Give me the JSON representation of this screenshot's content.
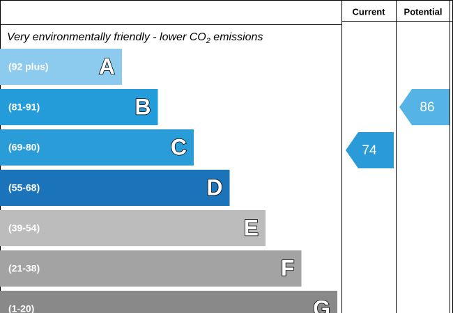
{
  "header": {
    "current": "Current",
    "potential": "Potential"
  },
  "subtitle": {
    "before": "Very environmentally friendly - lower CO",
    "sub": "2",
    "after": " emissions"
  },
  "bands": [
    {
      "range": "(92 plus)",
      "letter": "A"
    },
    {
      "range": "(81-91)",
      "letter": "B"
    },
    {
      "range": "(69-80)",
      "letter": "C"
    },
    {
      "range": "(55-68)",
      "letter": "D"
    },
    {
      "range": "(39-54)",
      "letter": "E"
    },
    {
      "range": "(21-38)",
      "letter": "F"
    },
    {
      "range": "(1-20)",
      "letter": "G"
    }
  ],
  "current": "74",
  "potential": "86"
}
